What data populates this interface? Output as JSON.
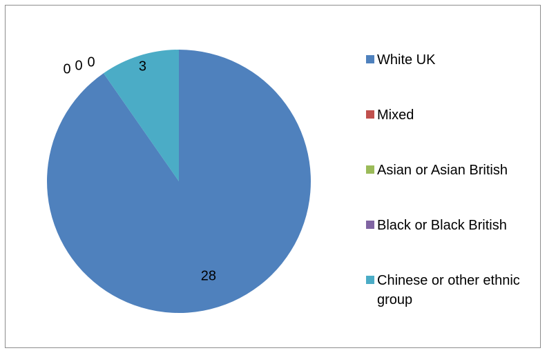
{
  "chart_data": {
    "type": "pie",
    "title": "",
    "categories": [
      "White UK",
      "Mixed",
      "Asian or Asian British",
      "Black or Black British",
      "Chinese or other ethnic group"
    ],
    "values": [
      28,
      0,
      0,
      0,
      3
    ],
    "colors": [
      "#4F81BD",
      "#C0504D",
      "#9BBB59",
      "#8064A2",
      "#4BACC6"
    ],
    "legend_position": "right",
    "data_labels": [
      "28",
      "0",
      "0",
      "0",
      "3"
    ]
  }
}
